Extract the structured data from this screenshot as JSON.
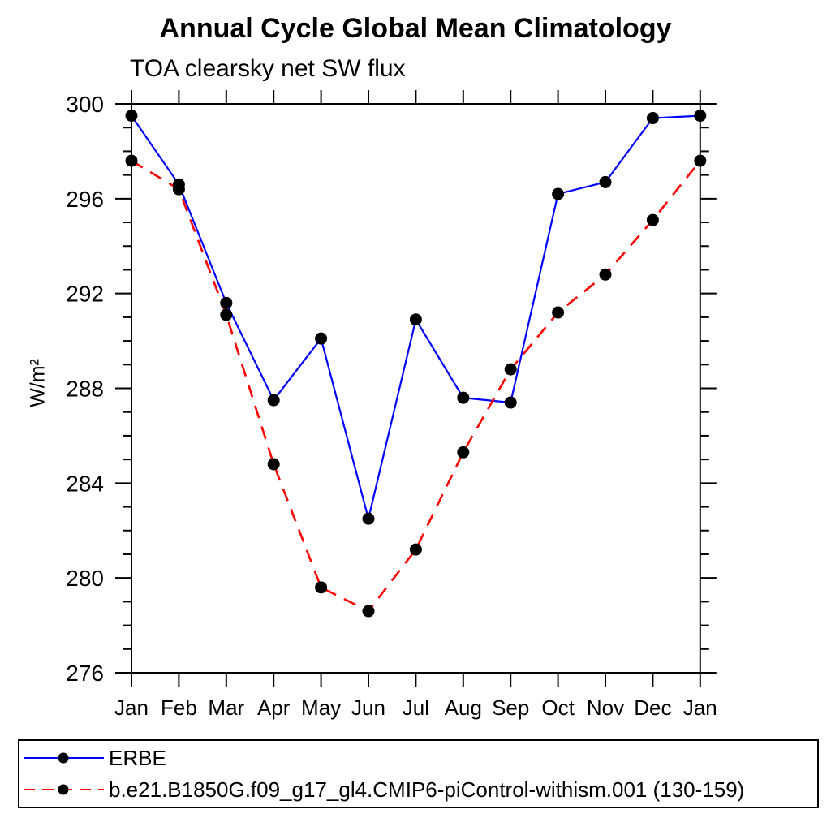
{
  "page": {
    "background": "#ffffff",
    "text_color": "#000000"
  },
  "chart_data": {
    "type": "line",
    "title": "Annual Cycle Global Mean Climatology",
    "subtitle": "TOA clearsky net SW flux",
    "ylabel": "W/m²",
    "xlabel": "",
    "ylim": [
      276,
      300
    ],
    "ytick_major_step": 4,
    "ytick_minor_step": 1,
    "ytick_major_labels": [
      "276",
      "280",
      "284",
      "288",
      "292",
      "296",
      "300"
    ],
    "grid": false,
    "legend_position": "bottom-left-box",
    "categories": [
      "Jan",
      "Feb",
      "Mar",
      "Apr",
      "May",
      "Jun",
      "Jul",
      "Aug",
      "Sep",
      "Oct",
      "Nov",
      "Dec",
      "Jan"
    ],
    "series": [
      {
        "name": "ERBE",
        "line_color": "#0000ff",
        "line_style": "solid",
        "marker": "filled-circle",
        "marker_color": "#000000",
        "values": [
          299.5,
          296.6,
          291.6,
          287.5,
          290.1,
          282.5,
          290.9,
          287.6,
          287.4,
          296.2,
          296.7,
          299.4,
          299.5
        ]
      },
      {
        "name": "b.e21.B1850G.f09_g17_gl4.CMIP6-piControl-withism.001 (130-159)",
        "line_color": "#ff0000",
        "line_style": "dashed",
        "marker": "filled-circle",
        "marker_color": "#000000",
        "values": [
          297.6,
          296.4,
          291.1,
          284.8,
          279.6,
          278.6,
          281.2,
          285.3,
          288.8,
          291.2,
          292.8,
          295.1,
          297.6
        ]
      }
    ]
  }
}
